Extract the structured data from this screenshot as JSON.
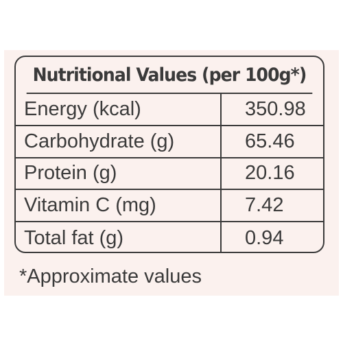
{
  "table": {
    "title": "Nutritional Values (per 100g*)",
    "rows": [
      {
        "name": "Energy (kcal)",
        "value": "350.98"
      },
      {
        "name": "Carbohydrate (g)",
        "value": "65.46"
      },
      {
        "name": "Protein (g)",
        "value": "20.16"
      },
      {
        "name": "Vitamin C (mg)",
        "value": "7.42"
      },
      {
        "name": "Total fat (g)",
        "value": "0.94"
      }
    ]
  },
  "footnote": "*Approximate values"
}
